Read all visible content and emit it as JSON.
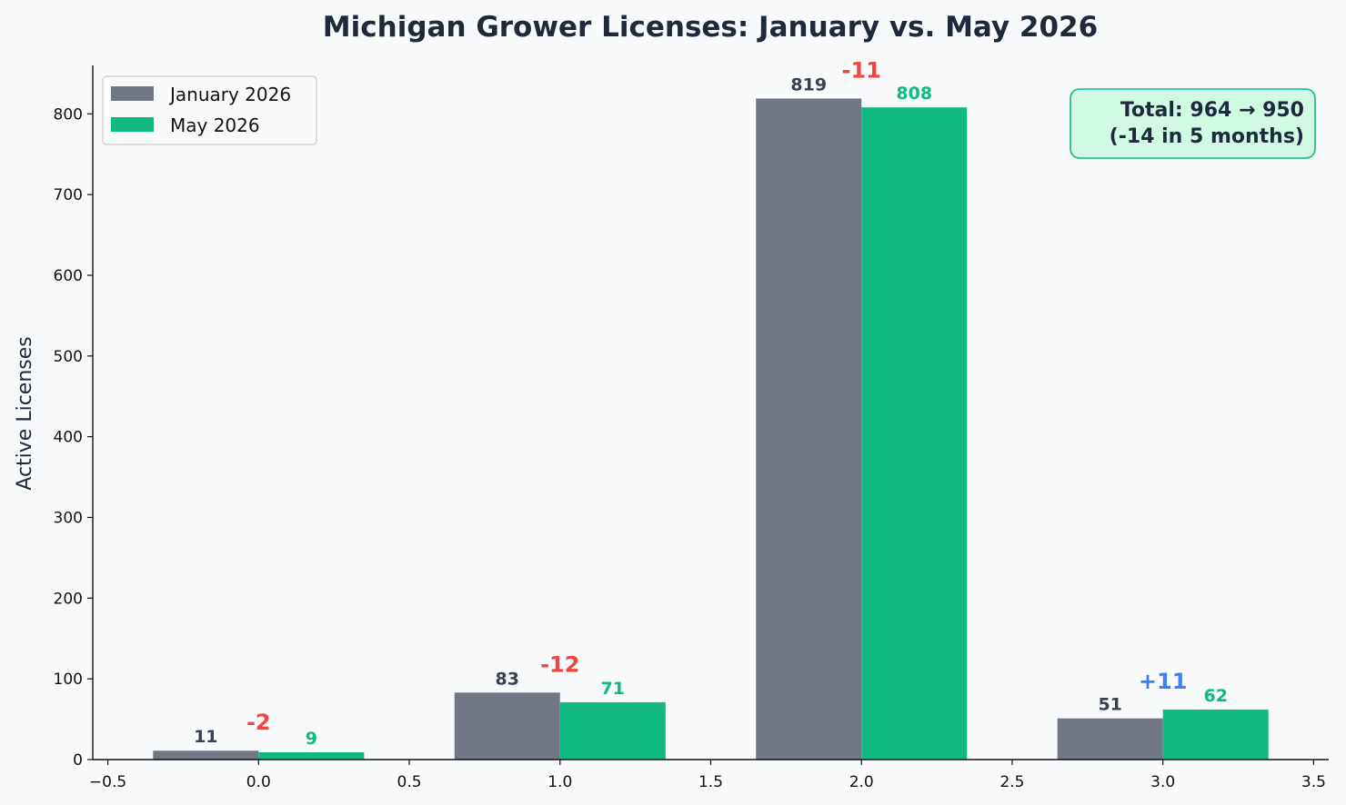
{
  "chart_data": {
    "type": "bar",
    "title": "Michigan Grower Licenses: January vs. May 2026",
    "ylabel": "Active Licenses",
    "xlabel": "",
    "x": [
      0,
      1,
      2,
      3
    ],
    "xlim": [
      -0.55,
      3.55
    ],
    "ylim": [
      0,
      860
    ],
    "x_ticks": [
      -0.5,
      0.0,
      0.5,
      1.0,
      1.5,
      2.0,
      2.5,
      3.0,
      3.5
    ],
    "x_tick_labels": [
      "−0.5",
      "0.0",
      "0.5",
      "1.0",
      "1.5",
      "2.0",
      "2.5",
      "3.0",
      "3.5"
    ],
    "y_ticks": [
      0,
      100,
      200,
      300,
      400,
      500,
      600,
      700,
      800
    ],
    "y_tick_labels": [
      "0",
      "100",
      "200",
      "300",
      "400",
      "500",
      "600",
      "700",
      "800"
    ],
    "bar_width": 0.35,
    "series": [
      {
        "name": "January 2026",
        "color": "#717784",
        "label_color": "#374151",
        "values": [
          11,
          83,
          819,
          51
        ]
      },
      {
        "name": "May 2026",
        "color": "#10b981",
        "label_color": "#10b981",
        "values": [
          9,
          71,
          808,
          62
        ]
      }
    ],
    "deltas": [
      {
        "text": "-2",
        "color": "#ef4444"
      },
      {
        "text": "-12",
        "color": "#ef4444"
      },
      {
        "text": "-11",
        "color": "#ef4444"
      },
      {
        "text": "+11",
        "color": "#3b82f6"
      }
    ],
    "annotation": {
      "line1": "Total: 964 → 950",
      "line2": "(-14 in 5 months)",
      "bg": "#d1fae5",
      "border": "#10b981"
    },
    "legend": "top-left",
    "grid": false
  }
}
